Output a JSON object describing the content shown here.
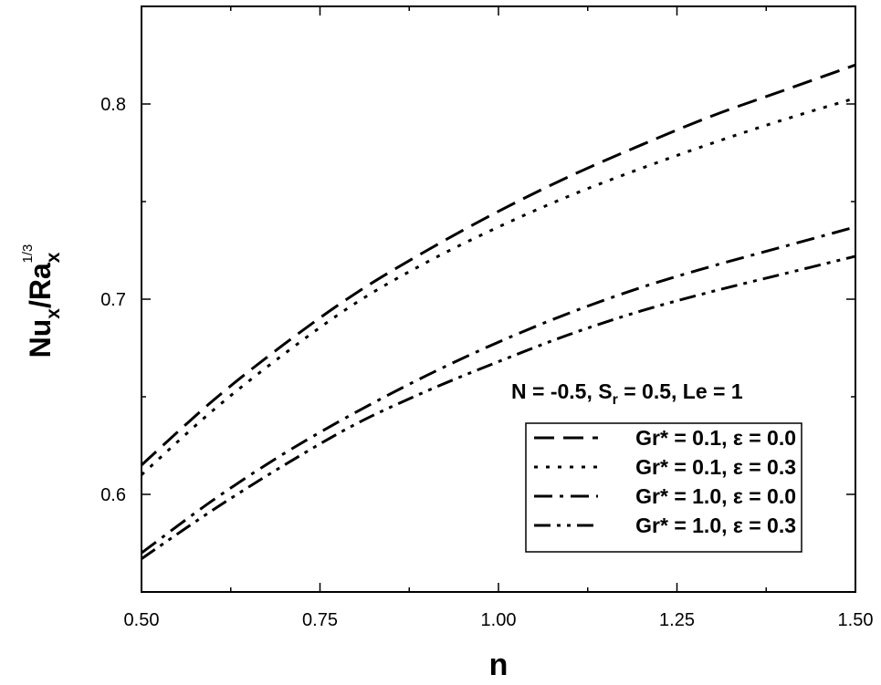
{
  "chart_data": {
    "type": "line",
    "xlabel": "n",
    "ylabel_main": "Nu",
    "ylabel_sub1": "x",
    "ylabel_mid": "/Ra",
    "ylabel_sub2": "x",
    "ylabel_sup": "1/3",
    "xlim": [
      0.5,
      1.5
    ],
    "ylim": [
      0.55,
      0.85
    ],
    "x_ticks": [
      "0.50",
      "0.75",
      "1.00",
      "1.25",
      "1.50"
    ],
    "y_ticks": [
      "0.6",
      "0.7",
      "0.8"
    ],
    "x_tick_values": [
      0.5,
      0.75,
      1.0,
      1.25,
      1.5
    ],
    "y_tick_values": [
      0.6,
      0.7,
      0.8
    ],
    "annotation": {
      "part1": "N = -0.5, S",
      "sub": "r",
      "part2": " = 0.5, Le = 1"
    },
    "legend_position": "bottom-right",
    "x": [
      0.5,
      0.6,
      0.7,
      0.8,
      0.9,
      1.0,
      1.1,
      1.2,
      1.3,
      1.4,
      1.5
    ],
    "series": [
      {
        "name": "Gr* = 0.1, ε = 0.0",
        "dash": "dash",
        "values": [
          0.615,
          0.648,
          0.677,
          0.703,
          0.725,
          0.745,
          0.763,
          0.779,
          0.794,
          0.807,
          0.82
        ]
      },
      {
        "name": "Gr* = 0.1, ε = 0.3",
        "dash": "dot",
        "values": [
          0.61,
          0.643,
          0.672,
          0.698,
          0.719,
          0.737,
          0.753,
          0.767,
          0.78,
          0.792,
          0.803
        ]
      },
      {
        "name": "Gr* = 1.0, ε = 0.0",
        "dash": "dashdot",
        "values": [
          0.57,
          0.597,
          0.621,
          0.642,
          0.661,
          0.678,
          0.693,
          0.706,
          0.717,
          0.727,
          0.737
        ]
      },
      {
        "name": "Gr* = 1.0, ε = 0.3",
        "dash": "dashdotdot",
        "values": [
          0.567,
          0.592,
          0.615,
          0.636,
          0.653,
          0.668,
          0.682,
          0.694,
          0.704,
          0.713,
          0.722
        ]
      }
    ]
  }
}
